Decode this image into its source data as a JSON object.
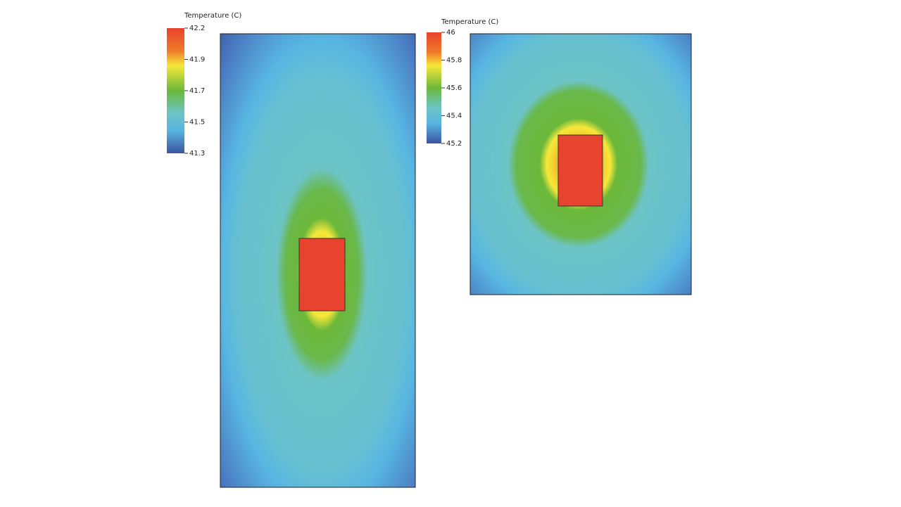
{
  "panels": [
    {
      "colorbar": {
        "title": "Temperature (C)",
        "ticks": [
          42.2,
          41.9,
          41.7,
          41.5,
          41.3
        ]
      }
    },
    {
      "colorbar": {
        "title": "Temperature (C)",
        "ticks": [
          46,
          45.8,
          45.6,
          45.4,
          45.2
        ]
      }
    }
  ]
}
